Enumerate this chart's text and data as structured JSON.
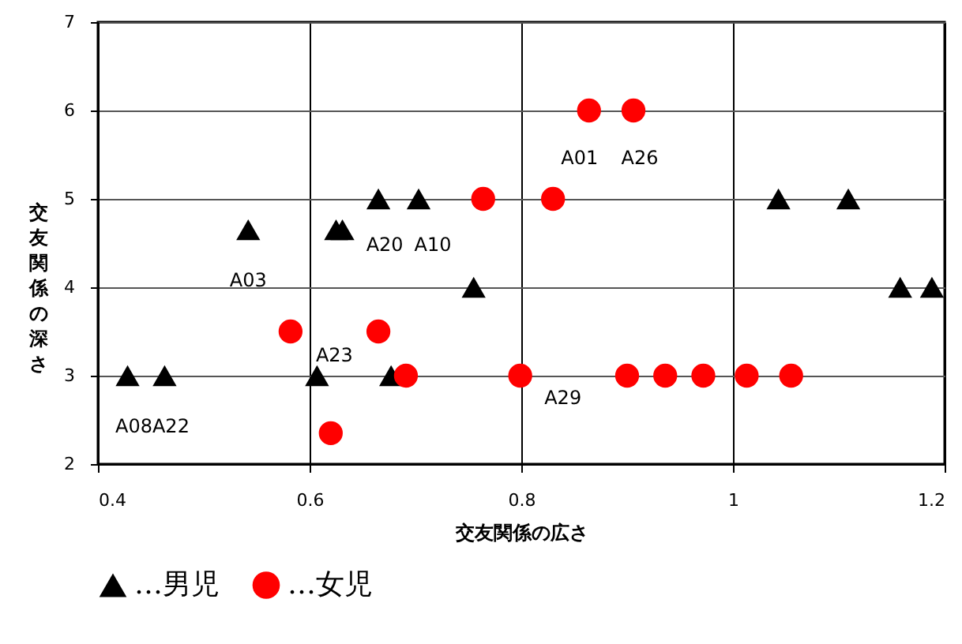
{
  "chart_data": {
    "type": "scatter",
    "xlabel": "交友関係の広さ",
    "ylabel": "交友関係の深さ",
    "xlim": [
      0.4,
      1.2
    ],
    "xticks": [
      0.4,
      0.6,
      0.8,
      1,
      1.2
    ],
    "ylim": [
      2,
      7
    ],
    "yticks": [
      2,
      3,
      4,
      5,
      6,
      7
    ],
    "grid": true,
    "legend": "bottom",
    "series": [
      {
        "name": "…男児",
        "color": "#000000",
        "marker": "triangle",
        "x": [
          0.428,
          0.463,
          0.542,
          0.625,
          0.631,
          0.607,
          0.677,
          0.665,
          0.703,
          0.755,
          1.043,
          1.109,
          1.158,
          1.188
        ],
        "values": [
          3,
          3,
          4.65,
          4.65,
          4.65,
          3,
          3,
          5,
          5,
          4,
          5,
          5,
          4,
          4
        ]
      },
      {
        "name": "…女児",
        "color": "#ff0000",
        "marker": "circle",
        "x": [
          0.582,
          0.665,
          0.62,
          0.691,
          0.764,
          0.83,
          0.799,
          0.864,
          0.906,
          0.9,
          0.936,
          0.972,
          1.013,
          1.055
        ],
        "values": [
          3.5,
          3.5,
          2.35,
          3,
          5,
          5,
          3,
          6,
          6,
          3,
          3,
          3,
          3,
          3
        ]
      }
    ],
    "annotations": [
      {
        "text": "A08",
        "x": 0.428,
        "y": 3
      },
      {
        "text": "A22",
        "x": 0.463,
        "y": 3
      },
      {
        "text": "A03",
        "x": 0.542,
        "y": 4.65
      },
      {
        "text": "A23",
        "x": 0.607,
        "y": 3
      },
      {
        "text": "A20",
        "x": 0.665,
        "y": 5
      },
      {
        "text": "A10",
        "x": 0.703,
        "y": 5
      },
      {
        "text": "A01",
        "x": 0.864,
        "y": 6
      },
      {
        "text": "A26",
        "x": 0.906,
        "y": 6
      },
      {
        "text": "A29",
        "x": 0.799,
        "y": 3
      }
    ]
  }
}
